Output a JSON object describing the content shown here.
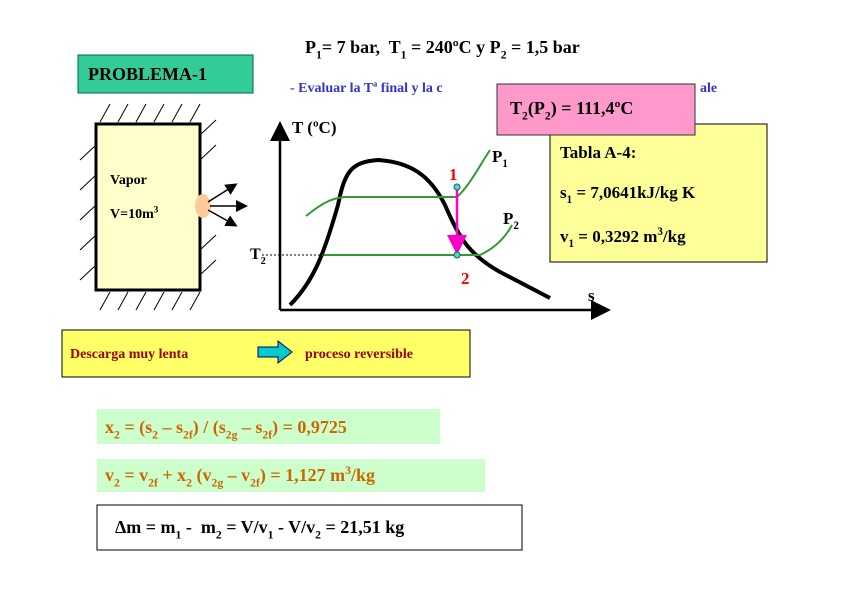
{
  "header": [
    "P",
    {
      "sub": "1"
    },
    "= 7 bar,  T",
    {
      "sub": "1"
    },
    " = 240ºC y P",
    {
      "sub": "2"
    },
    " = 1,5 bar"
  ],
  "problem_label": "PROBLEMA-1",
  "subtitle_fragments": [
    "- Evaluar la Tª final y la c",
    "ale"
  ],
  "callout": [
    "T",
    {
      "sub": "2"
    },
    "(P",
    {
      "sub": "2"
    },
    ") = 111,4ºC"
  ],
  "table": {
    "title": "Tabla A-4:",
    "lines": [
      [
        "s",
        {
          "sub": "1"
        },
        " = 7,0641kJ/kg K"
      ],
      [
        "v",
        {
          "sub": "1"
        },
        " = 0,3292 m",
        {
          "sup": "3"
        },
        "/kg"
      ]
    ]
  },
  "tank": {
    "lines": [
      [
        "Vapor"
      ],
      [
        "V=10m",
        {
          "sup": "3"
        }
      ]
    ]
  },
  "diagram": {
    "y_axis_label": "T (ºC)",
    "x_axis_label": "s",
    "t2_label": [
      "T",
      {
        "sub": "2"
      }
    ],
    "point_labels": [
      "1",
      "2"
    ],
    "isobar_labels": [
      [
        "P",
        {
          "sub": "1"
        }
      ],
      [
        "P",
        {
          "sub": "2"
        }
      ]
    ]
  },
  "note": {
    "left": "Descarga muy lenta",
    "right": "proceso reversible"
  },
  "formulas": [
    [
      "x",
      {
        "sub": "2"
      },
      " = (s",
      {
        "sub": "2"
      },
      " – s",
      {
        "sub": "2f"
      },
      ") / (s",
      {
        "sub": "2g"
      },
      " – s",
      {
        "sub": "2f"
      },
      ") = 0,9725"
    ],
    [
      "v",
      {
        "sub": "2"
      },
      " = v",
      {
        "sub": "2f"
      },
      " + x",
      {
        "sub": "2"
      },
      " (v",
      {
        "sub": "2g"
      },
      " – v",
      {
        "sub": "2f"
      },
      ") = 1,127 m",
      {
        "sup": "3"
      },
      "/kg"
    ],
    [
      "Δm = m",
      {
        "sub": "1"
      },
      " -  m",
      {
        "sub": "2"
      },
      " = V/v",
      {
        "sub": "1"
      },
      " - V/v",
      {
        "sub": "2"
      },
      " = 21,51 kg"
    ]
  ]
}
